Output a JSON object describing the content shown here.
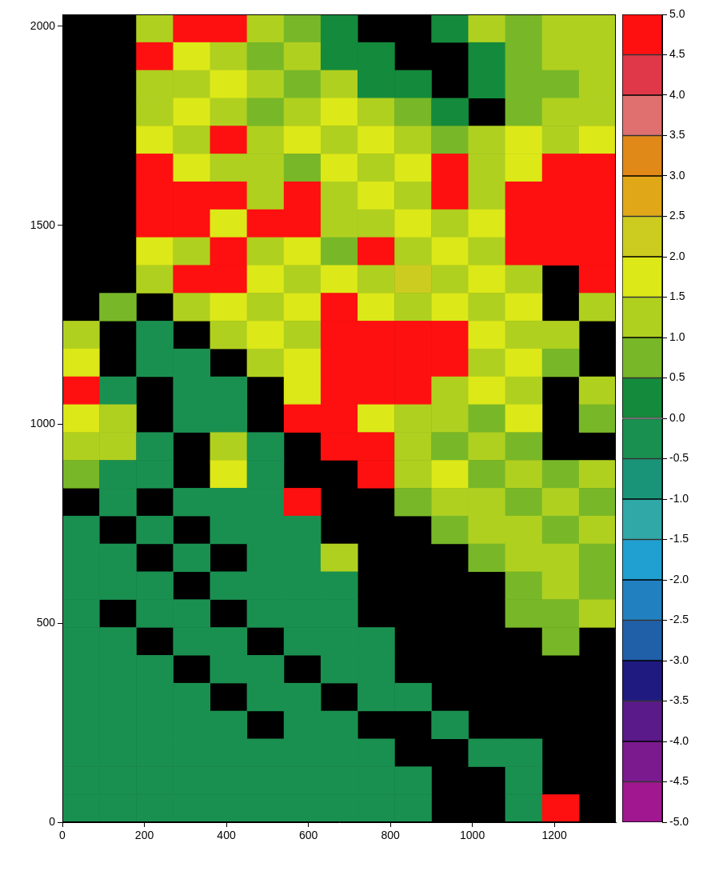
{
  "chart_data": {
    "type": "heatmap",
    "x": [
      45,
      135,
      225,
      315,
      405,
      495,
      585,
      675,
      765,
      855,
      945,
      1035,
      1125,
      1215,
      1305
    ],
    "y": [
      1995,
      1925,
      1855,
      1785,
      1715,
      1645,
      1575,
      1505,
      1435,
      1365,
      1295,
      1225,
      1155,
      1085,
      1015,
      945,
      875,
      805,
      735,
      665,
      595,
      525,
      455,
      385,
      315,
      245,
      175,
      105,
      35
    ],
    "z": [
      [
        null,
        null,
        1.0,
        5.0,
        5.0,
        1.0,
        0.5,
        0.3,
        null,
        null,
        0.3,
        1.0,
        0.5,
        1.0,
        1.0
      ],
      [
        null,
        null,
        5.0,
        1.5,
        1.0,
        0.5,
        1.0,
        0.3,
        0.3,
        null,
        null,
        0.3,
        0.5,
        1.0,
        1.0
      ],
      [
        null,
        null,
        1.0,
        1.0,
        1.5,
        1.0,
        0.5,
        1.0,
        0.3,
        0.3,
        null,
        0.3,
        0.5,
        0.5,
        1.0
      ],
      [
        null,
        null,
        1.0,
        1.5,
        1.0,
        0.5,
        1.0,
        1.5,
        1.0,
        0.5,
        0.3,
        null,
        0.5,
        1.0,
        1.0
      ],
      [
        null,
        null,
        1.5,
        1.0,
        5.0,
        1.0,
        1.5,
        1.0,
        1.5,
        1.0,
        0.5,
        1.0,
        1.5,
        1.0,
        1.5
      ],
      [
        null,
        null,
        5.0,
        1.5,
        1.0,
        1.0,
        0.5,
        1.5,
        1.0,
        1.5,
        5.0,
        1.0,
        1.5,
        5.0,
        5.0
      ],
      [
        null,
        null,
        5.0,
        5.0,
        5.0,
        1.0,
        5.0,
        1.0,
        1.5,
        1.0,
        5.0,
        1.0,
        5.0,
        5.0,
        5.0
      ],
      [
        null,
        null,
        5.0,
        5.0,
        1.5,
        5.0,
        5.0,
        1.0,
        1.0,
        1.5,
        1.0,
        1.5,
        5.0,
        5.0,
        5.0
      ],
      [
        null,
        null,
        1.5,
        1.0,
        5.0,
        1.0,
        1.5,
        0.5,
        5.0,
        1.0,
        1.5,
        1.0,
        5.0,
        5.0,
        5.0
      ],
      [
        null,
        null,
        1.0,
        5.0,
        5.0,
        1.5,
        1.0,
        1.5,
        1.0,
        2.0,
        1.0,
        1.5,
        1.0,
        null,
        5.0
      ],
      [
        null,
        0.5,
        null,
        1.0,
        1.5,
        1.0,
        1.5,
        5.0,
        1.5,
        1.0,
        1.5,
        1.0,
        1.5,
        null,
        1.0
      ],
      [
        1.0,
        null,
        -0.3,
        null,
        1.0,
        1.5,
        1.0,
        5.0,
        5.0,
        5.0,
        5.0,
        1.5,
        1.0,
        1.0,
        null
      ],
      [
        1.5,
        null,
        -0.3,
        -0.3,
        null,
        1.0,
        1.5,
        5.0,
        5.0,
        5.0,
        5.0,
        1.0,
        1.5,
        0.5,
        null
      ],
      [
        5.0,
        -0.3,
        null,
        -0.3,
        -0.3,
        null,
        1.5,
        5.0,
        5.0,
        5.0,
        1.0,
        1.5,
        1.0,
        null,
        1.0
      ],
      [
        1.5,
        1.0,
        null,
        -0.3,
        -0.3,
        null,
        5.0,
        5.0,
        1.5,
        1.0,
        1.0,
        0.5,
        1.5,
        null,
        0.5
      ],
      [
        1.0,
        1.0,
        -0.3,
        null,
        1.0,
        -0.3,
        null,
        5.0,
        5.0,
        1.0,
        0.5,
        1.0,
        0.5,
        null,
        null
      ],
      [
        0.5,
        -0.3,
        -0.3,
        null,
        1.5,
        -0.3,
        null,
        null,
        5.0,
        1.0,
        1.5,
        0.5,
        1.0,
        0.5,
        1.0
      ],
      [
        null,
        -0.3,
        null,
        -0.3,
        -0.3,
        -0.3,
        5.0,
        null,
        null,
        0.5,
        1.0,
        1.0,
        0.5,
        1.0,
        0.5
      ],
      [
        -0.3,
        null,
        -0.3,
        null,
        -0.3,
        -0.3,
        -0.3,
        null,
        null,
        null,
        0.5,
        1.0,
        1.0,
        0.5,
        1.0
      ],
      [
        -0.3,
        -0.3,
        null,
        -0.3,
        null,
        -0.3,
        -0.3,
        1.0,
        null,
        null,
        null,
        0.5,
        1.0,
        1.0,
        0.5
      ],
      [
        -0.3,
        -0.3,
        -0.3,
        null,
        -0.3,
        -0.3,
        -0.3,
        -0.3,
        null,
        null,
        null,
        null,
        0.5,
        1.0,
        0.5
      ],
      [
        -0.3,
        null,
        -0.3,
        -0.3,
        null,
        -0.3,
        -0.3,
        -0.3,
        null,
        null,
        null,
        null,
        0.5,
        0.5,
        1.0
      ],
      [
        -0.3,
        -0.3,
        null,
        -0.3,
        -0.3,
        null,
        -0.3,
        -0.3,
        -0.3,
        null,
        null,
        null,
        null,
        0.5,
        null
      ],
      [
        -0.3,
        -0.3,
        -0.3,
        null,
        -0.3,
        -0.3,
        null,
        -0.3,
        -0.3,
        null,
        null,
        null,
        null,
        null,
        null
      ],
      [
        -0.3,
        -0.3,
        -0.3,
        -0.3,
        null,
        -0.3,
        -0.3,
        null,
        -0.3,
        -0.3,
        null,
        null,
        null,
        null,
        null
      ],
      [
        -0.3,
        -0.3,
        -0.3,
        -0.3,
        -0.3,
        null,
        -0.3,
        -0.3,
        null,
        null,
        -0.3,
        null,
        null,
        null,
        null
      ],
      [
        -0.3,
        -0.3,
        -0.3,
        -0.3,
        -0.3,
        -0.3,
        -0.3,
        -0.3,
        -0.3,
        null,
        null,
        -0.3,
        -0.3,
        null,
        null
      ],
      [
        -0.3,
        -0.3,
        -0.3,
        -0.3,
        -0.3,
        -0.3,
        -0.3,
        -0.3,
        -0.3,
        -0.3,
        null,
        null,
        -0.3,
        null,
        null
      ],
      [
        -0.3,
        -0.3,
        -0.3,
        -0.3,
        -0.3,
        -0.3,
        -0.3,
        -0.3,
        -0.3,
        -0.3,
        null,
        null,
        -0.3,
        5.0,
        null
      ]
    ],
    "xlim": [
      0,
      1350
    ],
    "ylim": [
      0,
      2030
    ],
    "xticks": [
      0,
      200,
      400,
      600,
      800,
      1000,
      1200
    ],
    "yticks": [
      0,
      500,
      1000,
      1500,
      2000
    ],
    "grid": false,
    "colorbar": {
      "range": [
        -5,
        5
      ],
      "ticks": [
        {
          "value": -5,
          "label": "-5.0"
        },
        {
          "value": -4.5,
          "label": "-4.5"
        },
        {
          "value": -4,
          "label": "-4.0"
        },
        {
          "value": -3.5,
          "label": "-3.5"
        },
        {
          "value": -3,
          "label": "-3.0"
        },
        {
          "value": -2.5,
          "label": "-2.5"
        },
        {
          "value": -2,
          "label": "-2.0"
        },
        {
          "value": -1.5,
          "label": "-1.5"
        },
        {
          "value": -1,
          "label": "-1.0"
        },
        {
          "value": -0.5,
          "label": "-0.5"
        },
        {
          "value": 0,
          "label": "0.0"
        },
        {
          "value": 0.5,
          "label": "0.5"
        },
        {
          "value": 1,
          "label": "1.0"
        },
        {
          "value": 1.5,
          "label": "1.5"
        },
        {
          "value": 2,
          "label": "2.0"
        },
        {
          "value": 2.5,
          "label": "2.5"
        },
        {
          "value": 3,
          "label": "3.0"
        },
        {
          "value": 3.5,
          "label": "3.5"
        },
        {
          "value": 4,
          "label": "4.0"
        },
        {
          "value": 4.5,
          "label": "4.5"
        },
        {
          "value": 5,
          "label": "5.0"
        }
      ],
      "colors": [
        "#a0178f",
        "#7b1a8e",
        "#5a1a8a",
        "#1f1a80",
        "#2060a8",
        "#2080c0",
        "#20a0d0",
        "#30a8a8",
        "#1a9478",
        "#1a9050",
        "#148a3c",
        "#78b828",
        "#b0d020",
        "#dce818",
        "#cccc20",
        "#e0a818",
        "#e08818",
        "#e07070",
        "#e03848",
        "#ff1010"
      ]
    }
  }
}
